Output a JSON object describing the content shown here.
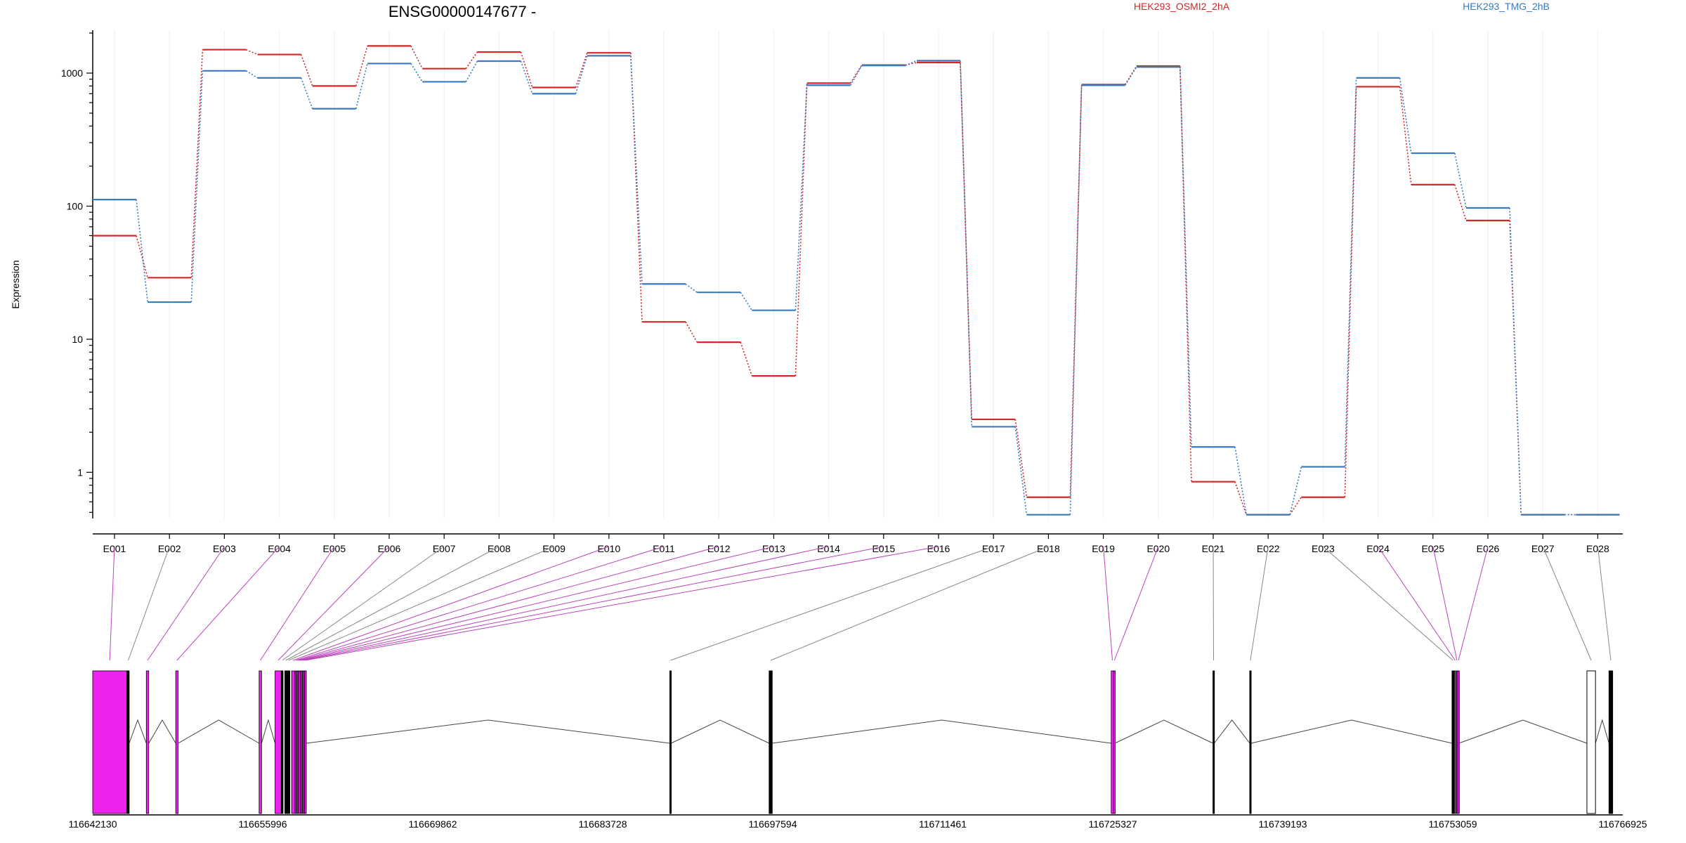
{
  "chart_data": {
    "type": "line",
    "title": "ENSG00000147677 -",
    "xlabel": "",
    "ylabel": "Expression",
    "yscale": "log",
    "ylim": [
      0.45,
      2100
    ],
    "yticks": [
      1,
      10,
      100,
      1000
    ],
    "ytick_labels": [
      "1",
      "10",
      "100",
      "1000"
    ],
    "grid": "vertical-light",
    "legend_placement": "top",
    "categories": [
      "E001",
      "E002",
      "E003",
      "E004",
      "E005",
      "E006",
      "E007",
      "E008",
      "E009",
      "E010",
      "E011",
      "E012",
      "E013",
      "E014",
      "E015",
      "E016",
      "E017",
      "E018",
      "E019",
      "E020",
      "E021",
      "E022",
      "E023",
      "E024",
      "E025",
      "E026",
      "E027",
      "E028"
    ],
    "series": [
      {
        "name": "HEK293_OSMI2_2hA",
        "color": "#d62728",
        "values": [
          60,
          29,
          1500,
          1380,
          800,
          1600,
          1080,
          1440,
          780,
          1420,
          13.5,
          9.5,
          5.3,
          840,
          1150,
          1200,
          2.5,
          0.65,
          820,
          1130,
          0.85,
          0.48,
          0.65,
          790,
          145,
          78,
          0.48,
          0.48
        ]
      },
      {
        "name": "HEK293_TMG_2hB",
        "color": "#3a7bbf",
        "values": [
          112,
          19,
          1040,
          920,
          540,
          1180,
          860,
          1230,
          700,
          1350,
          26,
          22.5,
          16.5,
          810,
          1140,
          1240,
          2.2,
          0.48,
          810,
          1110,
          1.55,
          0.48,
          1.1,
          920,
          250,
          97,
          0.48,
          0.48
        ]
      }
    ],
    "exon_significant": [
      true,
      false,
      true,
      true,
      true,
      true,
      false,
      false,
      false,
      true,
      true,
      true,
      true,
      true,
      true,
      true,
      false,
      false,
      true,
      true,
      false,
      false,
      false,
      true,
      true,
      true,
      false,
      false
    ],
    "gene_model": {
      "coordinate_labels": [
        "116642130",
        "116655996",
        "116669862",
        "116683728",
        "116697594",
        "116711461",
        "116725327",
        "116739193",
        "116753059",
        "116766925"
      ],
      "range": [
        116642130,
        116766925
      ],
      "exons": [
        [
          116642130,
          116644900
        ],
        [
          116644950,
          116645100
        ],
        [
          116646500,
          116646700
        ],
        [
          116648900,
          116649100
        ],
        [
          116655700,
          116655900
        ],
        [
          116657000,
          116657500
        ],
        [
          116657520,
          116657650
        ],
        [
          116657800,
          116657950
        ],
        [
          116658000,
          116658200
        ],
        [
          116658350,
          116658600
        ],
        [
          116658650,
          116658750
        ],
        [
          116658800,
          116658900
        ],
        [
          116658950,
          116659050
        ],
        [
          116659100,
          116659200
        ],
        [
          116659250,
          116659350
        ],
        [
          116659400,
          116659550
        ],
        [
          116689200,
          116689300
        ],
        [
          116697300,
          116697550
        ],
        [
          116725200,
          116725400
        ],
        [
          116725420,
          116725500
        ],
        [
          116733500,
          116733600
        ],
        [
          116736500,
          116736600
        ],
        [
          116753000,
          116753150
        ],
        [
          116753200,
          116753300
        ],
        [
          116753350,
          116753450
        ],
        [
          116753480,
          116753560
        ],
        [
          116764000,
          116764700
        ],
        [
          116765800,
          116766100
        ]
      ],
      "highlight_color": "#ee22ee",
      "link_highlight_color": "#bb44bb",
      "link_normal_color": "#888888"
    },
    "legend": [
      {
        "label": "HEK293_OSMI2_2hA",
        "color": "#d62728"
      },
      {
        "label": "HEK293_TMG_2hB",
        "color": "#3a7bbf"
      }
    ]
  }
}
